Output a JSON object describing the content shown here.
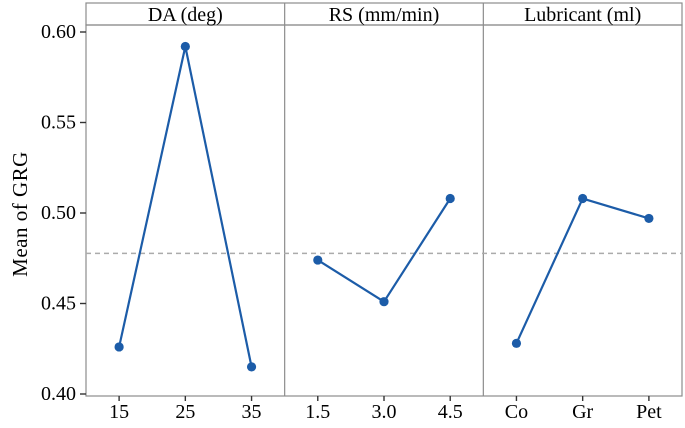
{
  "figure": {
    "kind": "main-effects-plot"
  },
  "chart_data": {
    "type": "line",
    "title": "",
    "ylabel": "Mean of GRG",
    "xlabel": "",
    "ylim": [
      0.4,
      0.6
    ],
    "yticks": [
      0.6,
      0.55,
      0.5,
      0.45,
      0.4
    ],
    "ytick_labels": [
      "0.60",
      "0.55",
      "0.50",
      "0.45",
      "0.40"
    ],
    "reference_line": 0.4777,
    "grid": false,
    "legend": "none",
    "panels": [
      {
        "title": "DA (deg)",
        "categories": [
          "15",
          "25",
          "35"
        ],
        "values": [
          0.426,
          0.592,
          0.415
        ]
      },
      {
        "title": "RS (mm/min)",
        "categories": [
          "1.5",
          "3.0",
          "4.5"
        ],
        "values": [
          0.474,
          0.451,
          0.508
        ]
      },
      {
        "title": "Lubricant (ml)",
        "categories": [
          "Co",
          "Gr",
          "Pet"
        ],
        "values": [
          0.428,
          0.508,
          0.497
        ]
      }
    ],
    "colors": {
      "series_line": "#1c5ca8",
      "marker": "#1c5ca8",
      "reference_line": "#ababab",
      "panel_border": "#8c8c8c",
      "tick": "#333333",
      "text": "#000000",
      "background": "#ffffff"
    }
  }
}
